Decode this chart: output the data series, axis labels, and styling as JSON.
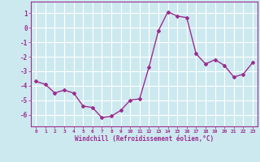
{
  "x": [
    0,
    1,
    2,
    3,
    4,
    5,
    6,
    7,
    8,
    9,
    10,
    11,
    12,
    13,
    14,
    15,
    16,
    17,
    18,
    19,
    20,
    21,
    22,
    23
  ],
  "y": [
    -3.7,
    -3.9,
    -4.5,
    -4.3,
    -4.5,
    -5.4,
    -5.5,
    -6.2,
    -6.1,
    -5.7,
    -5.0,
    -4.9,
    -2.7,
    -0.2,
    1.1,
    0.8,
    0.7,
    -1.8,
    -2.5,
    -2.2,
    -2.6,
    -3.4,
    -3.2,
    -2.4
  ],
  "line_color": "#9b2d8e",
  "marker": "D",
  "markersize": 2.0,
  "linewidth": 1.0,
  "bg_color": "#cde9f0",
  "grid_color": "#ffffff",
  "xlabel": "Windchill (Refroidissement éolien,°C)",
  "xlabel_color": "#9b2d8e",
  "tick_color": "#9b2d8e",
  "ylabel_ticks": [
    1,
    0,
    -1,
    -2,
    -3,
    -4,
    -5,
    -6
  ],
  "xlim": [
    -0.5,
    23.5
  ],
  "ylim": [
    -6.8,
    1.8
  ],
  "xtick_labels": [
    "0",
    "1",
    "2",
    "3",
    "4",
    "5",
    "6",
    "7",
    "8",
    "9",
    "10",
    "11",
    "12",
    "13",
    "14",
    "15",
    "16",
    "17",
    "18",
    "19",
    "20",
    "21",
    "22",
    "23"
  ]
}
